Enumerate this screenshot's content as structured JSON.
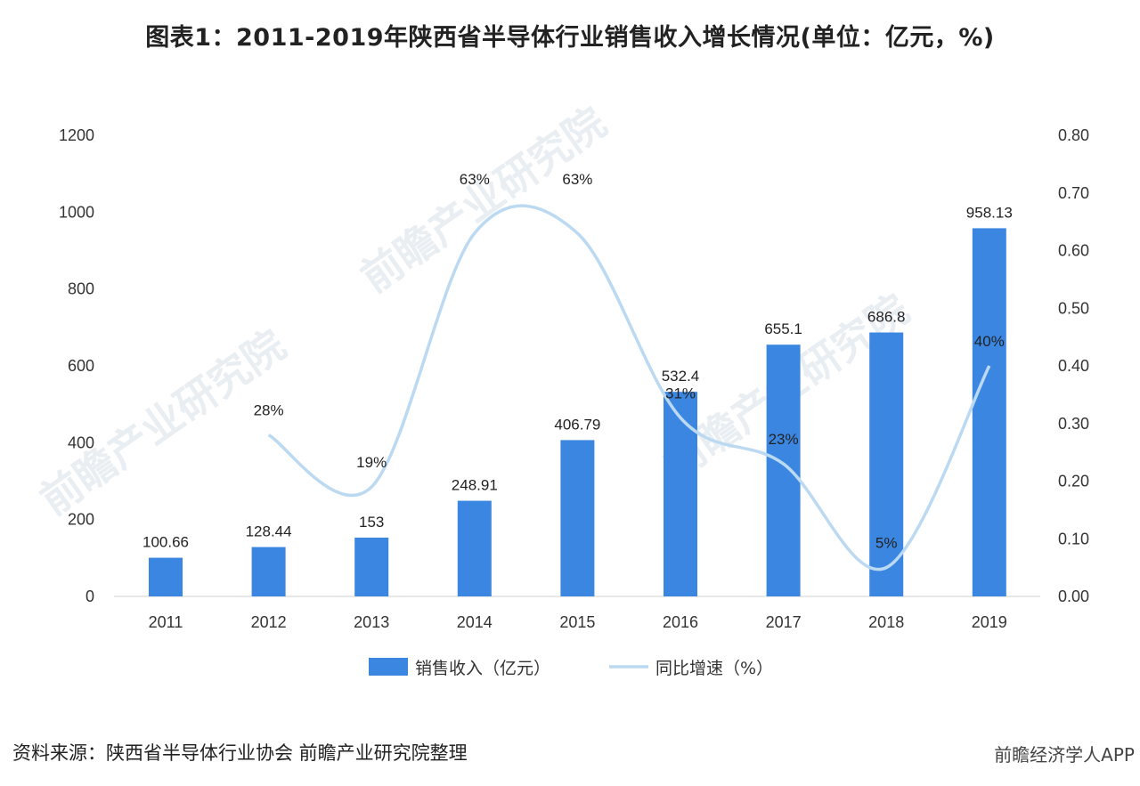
{
  "title": "图表1：2011-2019年陕西省半导体行业销售收入增长情况(单位：亿元，%)",
  "source": "资料来源：陕西省半导体行业协会 前瞻产业研究院整理",
  "brand": "前瞻经济学人APP",
  "watermark": "前瞻产业研究院",
  "chart_data": {
    "type": "bar+line",
    "categories": [
      "2011",
      "2012",
      "2013",
      "2014",
      "2015",
      "2016",
      "2017",
      "2018",
      "2019"
    ],
    "series": [
      {
        "name": "销售收入（亿元）",
        "type": "bar",
        "axis": "left",
        "color": "#3b86e0",
        "values": [
          100.66,
          128.44,
          153,
          248.91,
          406.79,
          532.4,
          655.1,
          686.8,
          958.13
        ],
        "labels": [
          "100.66",
          "128.44",
          "153",
          "248.91",
          "406.79",
          "532.4",
          "655.1",
          "686.8",
          "958.13"
        ]
      },
      {
        "name": "同比增速（%）",
        "type": "line",
        "axis": "right",
        "color": "#bcd9f2",
        "smooth": true,
        "values": [
          null,
          0.28,
          0.19,
          0.63,
          0.63,
          0.31,
          0.23,
          0.05,
          0.4
        ],
        "labels": [
          "",
          "28%",
          "19%",
          "63%",
          "63%",
          "31%",
          "23%",
          "5%",
          "40%"
        ]
      }
    ],
    "y_left": {
      "min": 0,
      "max": 1200,
      "ticks": [
        "0",
        "200",
        "400",
        "600",
        "800",
        "1000",
        "1200"
      ]
    },
    "y_right": {
      "min": 0,
      "max": 0.8,
      "ticks": [
        "0.00",
        "0.10",
        "0.20",
        "0.30",
        "0.40",
        "0.50",
        "0.60",
        "0.70",
        "0.80"
      ]
    },
    "grid": false,
    "legend": "bottom"
  }
}
